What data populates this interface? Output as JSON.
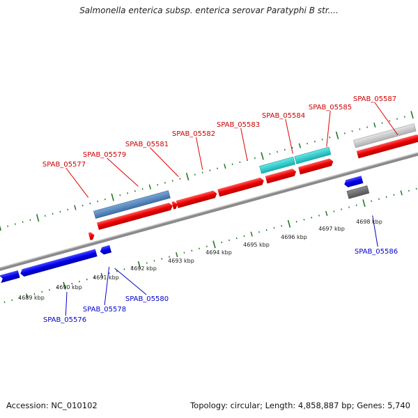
{
  "title": "Salmonella enterica subsp. enterica serovar Paratyphi B str....",
  "footer": {
    "accession": "Accession: NC_010102",
    "summary": "Topology: circular; Length: 4,858,887 bp; Genes: 5,740"
  },
  "colors": {
    "forward_gene": "#ff0000",
    "reverse_gene": "#0000ff",
    "forward_label": "#cc0000",
    "reverse_label": "#0000cc",
    "steelblue_feature": "#4a7fb8",
    "cyan_feature": "#22cccc",
    "grey_feature": "#c8c8c8",
    "darkgrey_feature": "#707070",
    "backbone": "#888888",
    "tick": "#227722"
  },
  "scale": {
    "unit": "kbp",
    "ticks": [
      {
        "label": "4689 kbp"
      },
      {
        "label": "4690 kbp"
      },
      {
        "label": "4691 kbp"
      },
      {
        "label": "4692 kbp"
      },
      {
        "label": "4693 kbp"
      },
      {
        "label": "4694 kbp"
      },
      {
        "label": "4695 kbp"
      },
      {
        "label": "4696 kbp"
      },
      {
        "label": "4697 kbp"
      },
      {
        "label": "4698 kbp"
      }
    ]
  },
  "forward_labels": [
    {
      "label": "SPAB_05577"
    },
    {
      "label": "SPAB_05579"
    },
    {
      "label": "SPAB_05581"
    },
    {
      "label": "SPAB_05582"
    },
    {
      "label": "SPAB_05583"
    },
    {
      "label": "SPAB_05584"
    },
    {
      "label": "SPAB_05585"
    },
    {
      "label": "SPAB_05587"
    }
  ],
  "reverse_labels": [
    {
      "label": "SPAB_05576"
    },
    {
      "label": "SPAB_05578"
    },
    {
      "label": "SPAB_05580"
    },
    {
      "label": "SPAB_05586"
    }
  ]
}
